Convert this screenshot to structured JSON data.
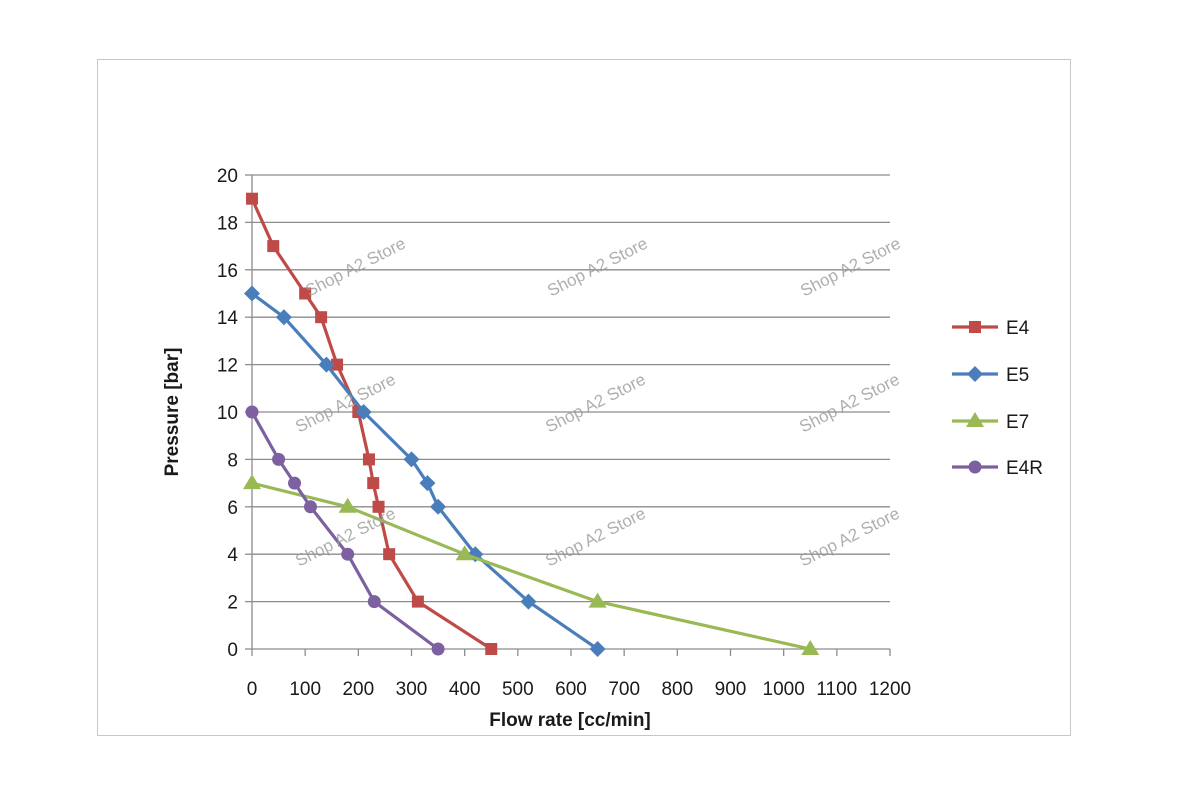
{
  "chart_data": {
    "type": "line",
    "xlabel": "Flow rate [cc/min]",
    "ylabel": "Pressure [bar]",
    "xlim": [
      0,
      1200
    ],
    "ylim": [
      0,
      20
    ],
    "x_ticks": [
      0,
      100,
      200,
      300,
      400,
      500,
      600,
      700,
      800,
      900,
      1000,
      1100,
      1200
    ],
    "y_ticks": [
      0,
      2,
      4,
      6,
      8,
      10,
      12,
      14,
      16,
      18,
      20
    ],
    "grid": "horizontal",
    "legend_position": "right",
    "series": [
      {
        "name": "E4",
        "color": "#be4b48",
        "marker": "square",
        "points": [
          [
            0,
            19
          ],
          [
            40,
            17
          ],
          [
            100,
            15
          ],
          [
            130,
            14
          ],
          [
            160,
            12
          ],
          [
            200,
            10
          ],
          [
            220,
            8
          ],
          [
            228,
            7
          ],
          [
            238,
            6
          ],
          [
            258,
            4
          ],
          [
            312,
            2
          ],
          [
            450,
            0
          ]
        ]
      },
      {
        "name": "E5",
        "color": "#4a7ebb",
        "marker": "diamond",
        "points": [
          [
            0,
            15
          ],
          [
            60,
            14
          ],
          [
            140,
            12
          ],
          [
            210,
            10
          ],
          [
            300,
            8
          ],
          [
            330,
            7
          ],
          [
            350,
            6
          ],
          [
            420,
            4
          ],
          [
            520,
            2
          ],
          [
            650,
            0
          ]
        ]
      },
      {
        "name": "E7",
        "color": "#98b954",
        "marker": "triangle",
        "points": [
          [
            0,
            7
          ],
          [
            180,
            6
          ],
          [
            400,
            4
          ],
          [
            650,
            2
          ],
          [
            1050,
            0
          ]
        ]
      },
      {
        "name": "E4R",
        "color": "#7d60a0",
        "marker": "circle",
        "points": [
          [
            0,
            10
          ],
          [
            50,
            8
          ],
          [
            80,
            7
          ],
          [
            110,
            6
          ],
          [
            180,
            4
          ],
          [
            230,
            2
          ],
          [
            350,
            0
          ]
        ]
      }
    ]
  },
  "watermark": {
    "text": "Shop A2 Store"
  }
}
